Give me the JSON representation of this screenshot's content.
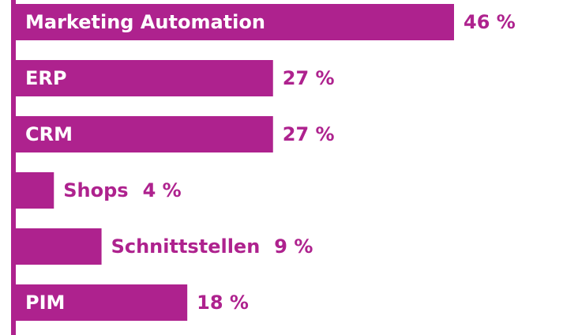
{
  "chart_data": {
    "type": "bar",
    "orientation": "horizontal",
    "categories": [
      "Marketing Automation",
      "ERP",
      "CRM",
      "Shops",
      "Schnittstellen",
      "PIM"
    ],
    "values": [
      46,
      27,
      27,
      4,
      9,
      18
    ],
    "value_labels": [
      "46 %",
      "27 %",
      "27 %",
      "4 %",
      "9 %",
      "18 %"
    ],
    "color": "#ae228e",
    "xlim": [
      0,
      46
    ]
  }
}
